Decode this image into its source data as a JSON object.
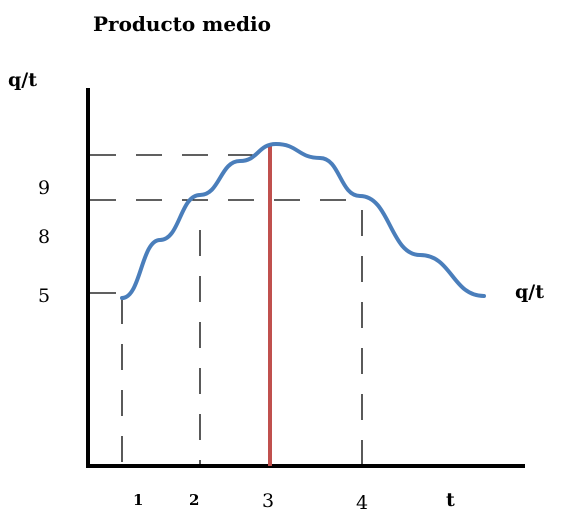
{
  "chart_data": {
    "type": "line",
    "title": "Producto medio",
    "ylabel": "q/t",
    "curve_label": "q/t",
    "xlabel": "t",
    "y_ticks": [
      "9",
      "8",
      "5"
    ],
    "x_ticks": [
      "1",
      "2",
      "3",
      "4"
    ],
    "series": [
      {
        "x": [
          1,
          1.5,
          2,
          2.5,
          3,
          3.5,
          4,
          4.5,
          5
        ],
        "values": [
          5,
          7.3,
          8.9,
          9.9,
          10.5,
          10.1,
          8.9,
          7.0,
          5.8
        ]
      }
    ],
    "colors": {
      "curve": "#4a7ebb",
      "peak_line": "#c0504d"
    }
  }
}
